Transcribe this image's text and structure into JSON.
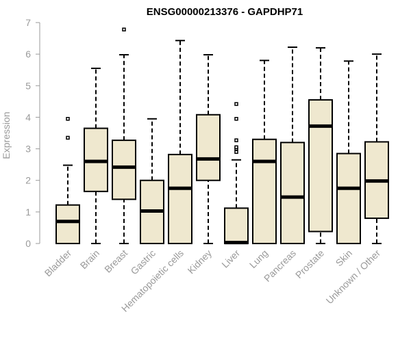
{
  "chart_data": {
    "type": "boxplot",
    "title": "ENSG00000213376 - GAPDHP71",
    "ylabel": "Expression",
    "ylim": [
      0,
      7
    ],
    "yticks": [
      0,
      1,
      2,
      3,
      4,
      5,
      6,
      7
    ],
    "box_color": "#efe8cf",
    "categories": [
      "Bladder",
      "Brain",
      "Breast",
      "Gastric",
      "Hematopoietic cells",
      "Kidney",
      "Liver",
      "Lung",
      "Pancreas",
      "Prostate",
      "Skin",
      "Unknown / Other"
    ],
    "boxes": [
      {
        "min": 0,
        "q1": 0,
        "median": 0.7,
        "q3": 1.22,
        "max": 2.48,
        "outliers": [
          3.35,
          3.95
        ]
      },
      {
        "min": 0,
        "q1": 1.65,
        "median": 2.6,
        "q3": 3.65,
        "max": 5.55,
        "outliers": []
      },
      {
        "min": 0,
        "q1": 1.4,
        "median": 2.42,
        "q3": 3.27,
        "max": 5.98,
        "outliers": [
          6.78
        ]
      },
      {
        "min": 0,
        "q1": 0,
        "median": 1.03,
        "q3": 2.0,
        "max": 3.95,
        "outliers": []
      },
      {
        "min": 0,
        "q1": 0,
        "median": 1.75,
        "q3": 2.82,
        "max": 6.43,
        "outliers": []
      },
      {
        "min": 0,
        "q1": 2.0,
        "median": 2.68,
        "q3": 4.08,
        "max": 5.98,
        "outliers": []
      },
      {
        "min": 0,
        "q1": 0,
        "median": 0.03,
        "q3": 1.12,
        "max": 2.65,
        "outliers": [
          2.9,
          3.0,
          3.05,
          3.27,
          3.95,
          4.42
        ]
      },
      {
        "min": 0,
        "q1": 0,
        "median": 2.6,
        "q3": 3.3,
        "max": 5.8,
        "outliers": []
      },
      {
        "min": 0,
        "q1": 0,
        "median": 1.47,
        "q3": 3.2,
        "max": 6.22,
        "outliers": []
      },
      {
        "min": 0,
        "q1": 0.38,
        "median": 3.72,
        "q3": 4.55,
        "max": 6.2,
        "outliers": []
      },
      {
        "min": 0,
        "q1": 0,
        "median": 1.75,
        "q3": 2.85,
        "max": 5.78,
        "outliers": []
      },
      {
        "min": 0,
        "q1": 0.8,
        "median": 1.98,
        "q3": 3.22,
        "max": 6.0,
        "outliers": []
      }
    ]
  }
}
